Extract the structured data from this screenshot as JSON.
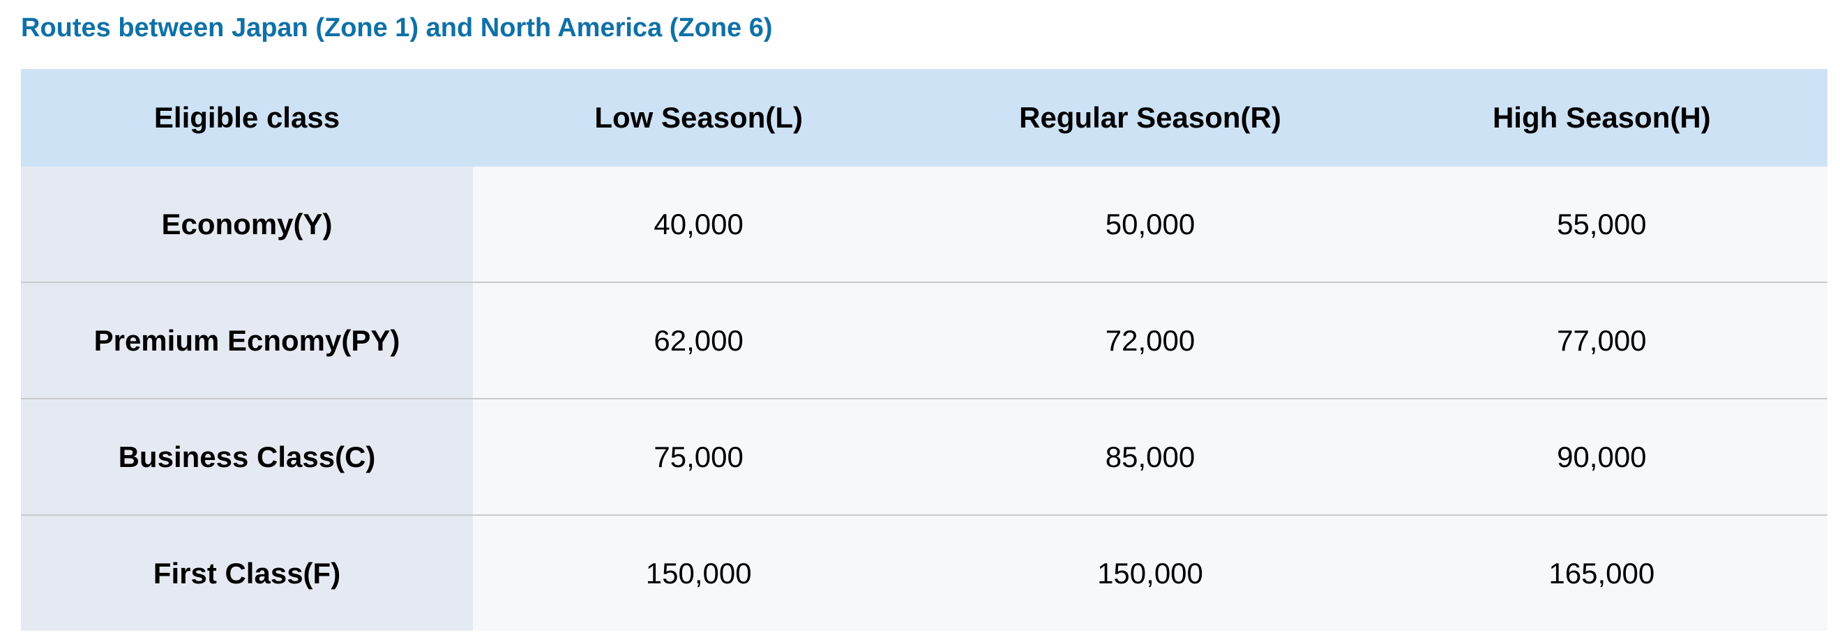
{
  "page": {
    "title": "Routes between Japan (Zone 1) and North America (Zone 6)"
  },
  "colors": {
    "title_text": "#0e71a7",
    "header_bg": "#cee2f6",
    "label_column_bg": "#e5eaf2",
    "data_cell_bg": "#f7f8fa",
    "row_border": "#c9cacb"
  },
  "table": {
    "columns": [
      "Eligible class",
      "Low Season(L)",
      "Regular Season(R)",
      "High Season(H)"
    ],
    "rows": [
      {
        "label": "Economy(Y)",
        "values": [
          "40,000",
          "50,000",
          "55,000"
        ]
      },
      {
        "label": "Premium Ecnomy(PY)",
        "values": [
          "62,000",
          "72,000",
          "77,000"
        ]
      },
      {
        "label": "Business Class(C)",
        "values": [
          "75,000",
          "85,000",
          "90,000"
        ]
      },
      {
        "label": "First Class(F)",
        "values": [
          "150,000",
          "150,000",
          "165,000"
        ]
      }
    ]
  },
  "chart_data": {
    "type": "table",
    "title": "Routes between Japan (Zone 1) and North America (Zone 6)",
    "columns": [
      "Eligible class",
      "Low Season(L)",
      "Regular Season(R)",
      "High Season(H)"
    ],
    "rows": [
      [
        "Economy(Y)",
        40000,
        50000,
        55000
      ],
      [
        "Premium Ecnomy(PY)",
        62000,
        72000,
        77000
      ],
      [
        "Business Class(C)",
        75000,
        85000,
        90000
      ],
      [
        "First Class(F)",
        150000,
        150000,
        165000
      ]
    ]
  }
}
